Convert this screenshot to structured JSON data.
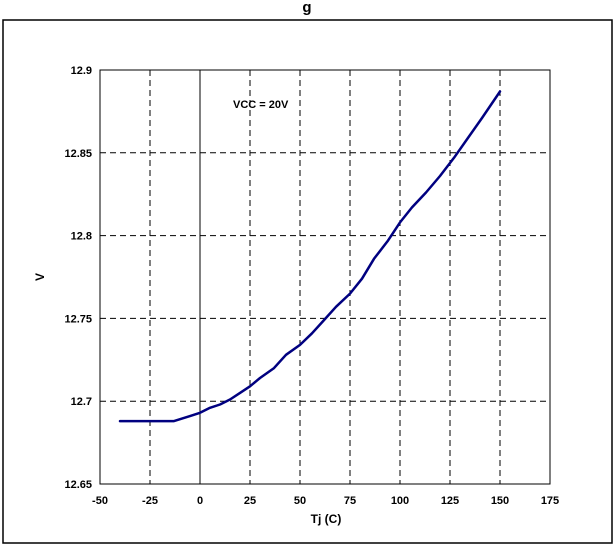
{
  "chart_data": {
    "type": "line",
    "title": "g",
    "xlabel": "Tj (C)",
    "ylabel": "V",
    "xlim": [
      -50,
      175
    ],
    "ylim": [
      12.65,
      12.9
    ],
    "x_ticks": [
      -50,
      -25,
      0,
      25,
      50,
      75,
      100,
      125,
      150,
      175
    ],
    "x_tick_labels": [
      "-50",
      "-25",
      "0",
      "25",
      "50",
      "75",
      "100",
      "125",
      "150",
      "175"
    ],
    "y_ticks": [
      12.65,
      12.7,
      12.75,
      12.8,
      12.85,
      12.9
    ],
    "y_tick_labels": [
      "12.65",
      "12.7",
      "12.75",
      "12.8",
      "12.85",
      "12.9"
    ],
    "grid": true,
    "annotation": "VCC = 20V",
    "series": [
      {
        "color": "#000080",
        "x": [
          -40,
          -30,
          -20,
          -13,
          -5,
          0,
          5,
          10,
          15,
          20,
          25,
          30,
          37,
          43,
          50,
          56,
          62,
          68,
          75,
          81,
          87,
          94,
          100,
          106,
          113,
          120,
          127,
          134,
          141,
          150
        ],
        "y": [
          12.688,
          12.688,
          12.688,
          12.688,
          12.691,
          12.693,
          12.696,
          12.698,
          12.701,
          12.705,
          12.709,
          12.714,
          12.72,
          12.728,
          12.734,
          12.741,
          12.749,
          12.757,
          12.765,
          12.774,
          12.786,
          12.797,
          12.808,
          12.817,
          12.826,
          12.836,
          12.847,
          12.859,
          12.871,
          12.887
        ]
      }
    ]
  }
}
